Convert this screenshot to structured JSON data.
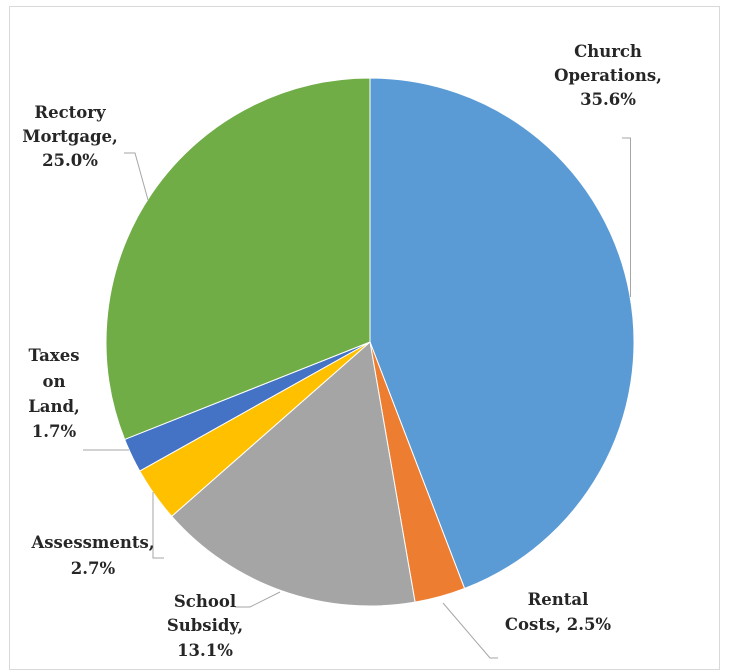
{
  "chart_data": {
    "type": "pie",
    "title": "",
    "start_angle_deg": 0,
    "direction": "clockwise",
    "legend": "none",
    "slices": [
      {
        "name": "Church Operations",
        "value": 35.6,
        "display": "35.6%",
        "color": "#5b9bd5",
        "label_lines": [
          "Church",
          "Operations,",
          "35.6%"
        ]
      },
      {
        "name": "Rental Costs",
        "value": 2.5,
        "display": "2.5%",
        "color": "#ed7d31",
        "label_lines": [
          "Rental",
          "Costs, 2.5%"
        ]
      },
      {
        "name": "School Subsidy",
        "value": 13.1,
        "display": "13.1%",
        "color": "#a5a5a5",
        "label_lines": [
          "School",
          "Subsidy,",
          "13.1%"
        ]
      },
      {
        "name": "Assessments",
        "value": 2.7,
        "display": "2.7%",
        "color": "#ffc000",
        "label_lines": [
          "Assessments,",
          "2.7%"
        ]
      },
      {
        "name": "Taxes on Land",
        "value": 1.7,
        "display": "1.7%",
        "color": "#4472c4",
        "label_lines": [
          "Taxes",
          "on",
          "Land,",
          "1.7%"
        ]
      },
      {
        "name": "Rectory Mortgage",
        "value": 25.0,
        "display": "25.0%",
        "color": "#70ad47",
        "label_lines": [
          "Rectory",
          "Mortgage,",
          "25.0%"
        ]
      }
    ]
  }
}
